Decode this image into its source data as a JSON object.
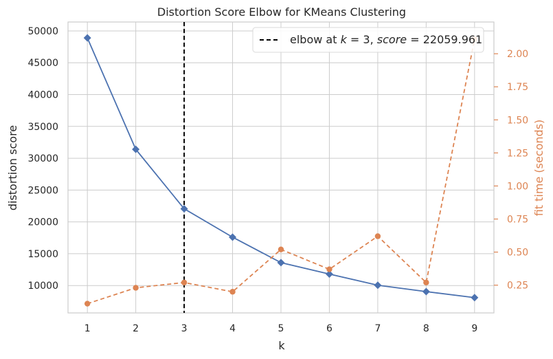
{
  "chart_data": {
    "type": "line",
    "title": "Distortion Score Elbow for KMeans Clustering",
    "xlabel": "k",
    "ylabel": "distortion score",
    "y2label": "fit time (seconds)",
    "x": [
      1,
      2,
      3,
      4,
      5,
      6,
      7,
      8,
      9
    ],
    "xlim": [
      0.6,
      9.4
    ],
    "ylim": [
      5700,
      51400
    ],
    "y2lim": [
      0.04,
      2.24
    ],
    "yticks": [
      10000,
      15000,
      20000,
      25000,
      30000,
      35000,
      40000,
      45000,
      50000
    ],
    "y2ticks": [
      "0.25",
      "0.50",
      "0.75",
      "1.00",
      "1.25",
      "1.50",
      "1.75",
      "2.00"
    ],
    "grid": true,
    "legend_position": "top-right",
    "series": [
      {
        "name": "distortion score",
        "axis": "left",
        "style": "solid",
        "marker": "diamond",
        "color": "#4c72b0",
        "values": [
          48900,
          31400,
          22060,
          17600,
          13600,
          11800,
          10050,
          9050,
          8100
        ]
      },
      {
        "name": "fit time",
        "axis": "right",
        "style": "dashed",
        "marker": "circle",
        "color": "#dd8452",
        "values": [
          0.11,
          0.23,
          0.27,
          0.2,
          0.52,
          0.37,
          0.62,
          0.27,
          2.11
        ]
      }
    ],
    "elbow": {
      "k": 3,
      "legend_label": "elbow at k = 3, score = 22059.961",
      "label_parts": {
        "prefix": "elbow at ",
        "k_var": "k",
        "eq1": " = 3, ",
        "score_var": "score",
        "eq2": " = 22059.961"
      },
      "color": "#000000",
      "style": "dashed"
    }
  },
  "colors": {
    "grid": "#cccccc",
    "axis_text": "#262626",
    "left_series": "#4c72b0",
    "right_series": "#dd8452"
  }
}
